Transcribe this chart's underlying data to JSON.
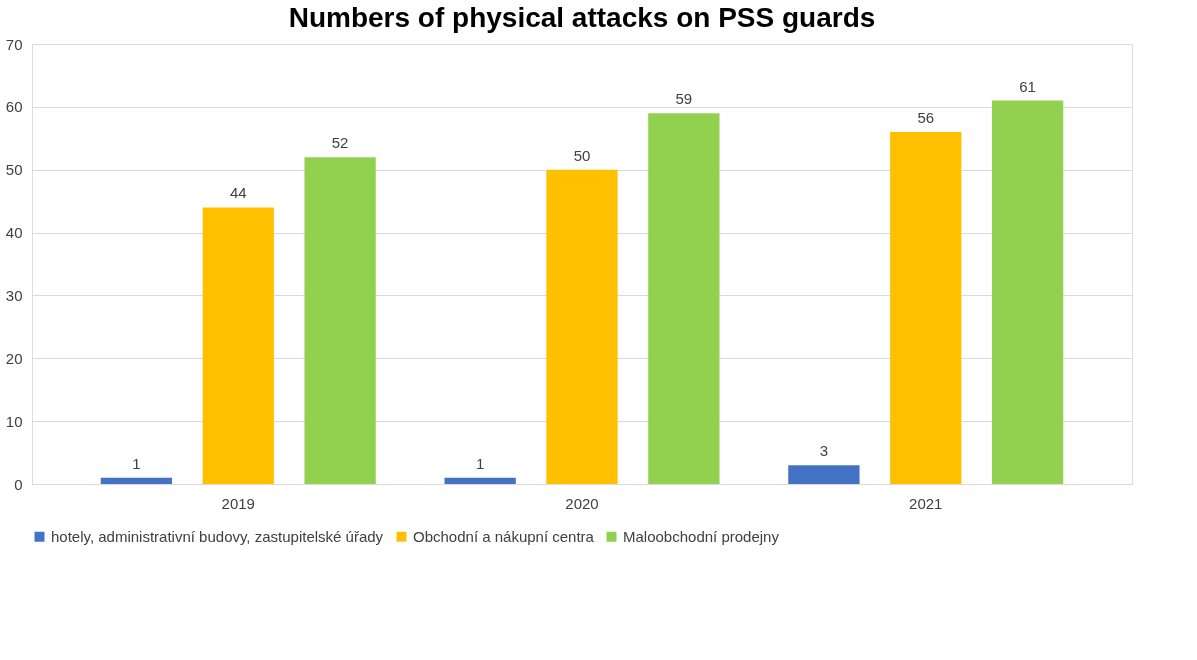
{
  "chart_data": {
    "type": "bar",
    "title": "Numbers of physical attacks on PSS guards",
    "categories": [
      "2019",
      "2020",
      "2021"
    ],
    "series": [
      {
        "name": "hotely, administrativní budovy, zastupitelské úřady",
        "color": "#4472c4",
        "values": [
          1,
          1,
          3
        ]
      },
      {
        "name": "Obchodní a nákupní centra",
        "color": "#ffc000",
        "values": [
          44,
          50,
          56
        ]
      },
      {
        "name": "Maloobchodní prodejny",
        "color": "#92d050",
        "values": [
          52,
          59,
          61
        ]
      }
    ],
    "ylim": [
      0,
      70
    ],
    "yticks": [
      0,
      10,
      20,
      30,
      40,
      50,
      60,
      70
    ],
    "grid": "y",
    "legend": "bottom",
    "data_labels": true
  }
}
